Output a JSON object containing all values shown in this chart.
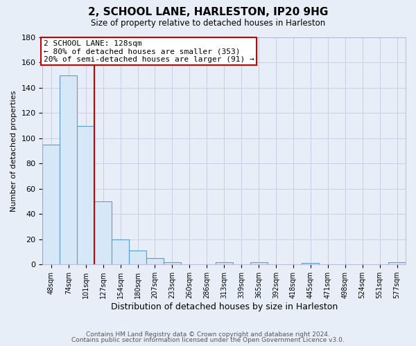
{
  "title": "2, SCHOOL LANE, HARLESTON, IP20 9HG",
  "subtitle": "Size of property relative to detached houses in Harleston",
  "xlabel": "Distribution of detached houses by size in Harleston",
  "ylabel": "Number of detached properties",
  "footer_line1": "Contains HM Land Registry data © Crown copyright and database right 2024.",
  "footer_line2": "Contains public sector information licensed under the Open Government Licence v3.0.",
  "bin_labels": [
    "48sqm",
    "74sqm",
    "101sqm",
    "127sqm",
    "154sqm",
    "180sqm",
    "207sqm",
    "233sqm",
    "260sqm",
    "286sqm",
    "313sqm",
    "339sqm",
    "365sqm",
    "392sqm",
    "418sqm",
    "445sqm",
    "471sqm",
    "498sqm",
    "524sqm",
    "551sqm",
    "577sqm"
  ],
  "bar_values": [
    95,
    150,
    110,
    50,
    20,
    11,
    5,
    2,
    0,
    0,
    2,
    0,
    2,
    0,
    0,
    1,
    0,
    0,
    0,
    0,
    2
  ],
  "bar_color": "#d6e8f7",
  "bar_edge_color": "#5b9bd5",
  "marker_bin_index": 3,
  "marker_color": "#cc0000",
  "annotation_title": "2 SCHOOL LANE: 128sqm",
  "annotation_line1": "← 80% of detached houses are smaller (353)",
  "annotation_line2": "20% of semi-detached houses are larger (91) →",
  "ylim": [
    0,
    180
  ],
  "yticks": [
    0,
    20,
    40,
    60,
    80,
    100,
    120,
    140,
    160,
    180
  ],
  "background_color": "#e8eef8",
  "grid_color": "#c0cce0"
}
